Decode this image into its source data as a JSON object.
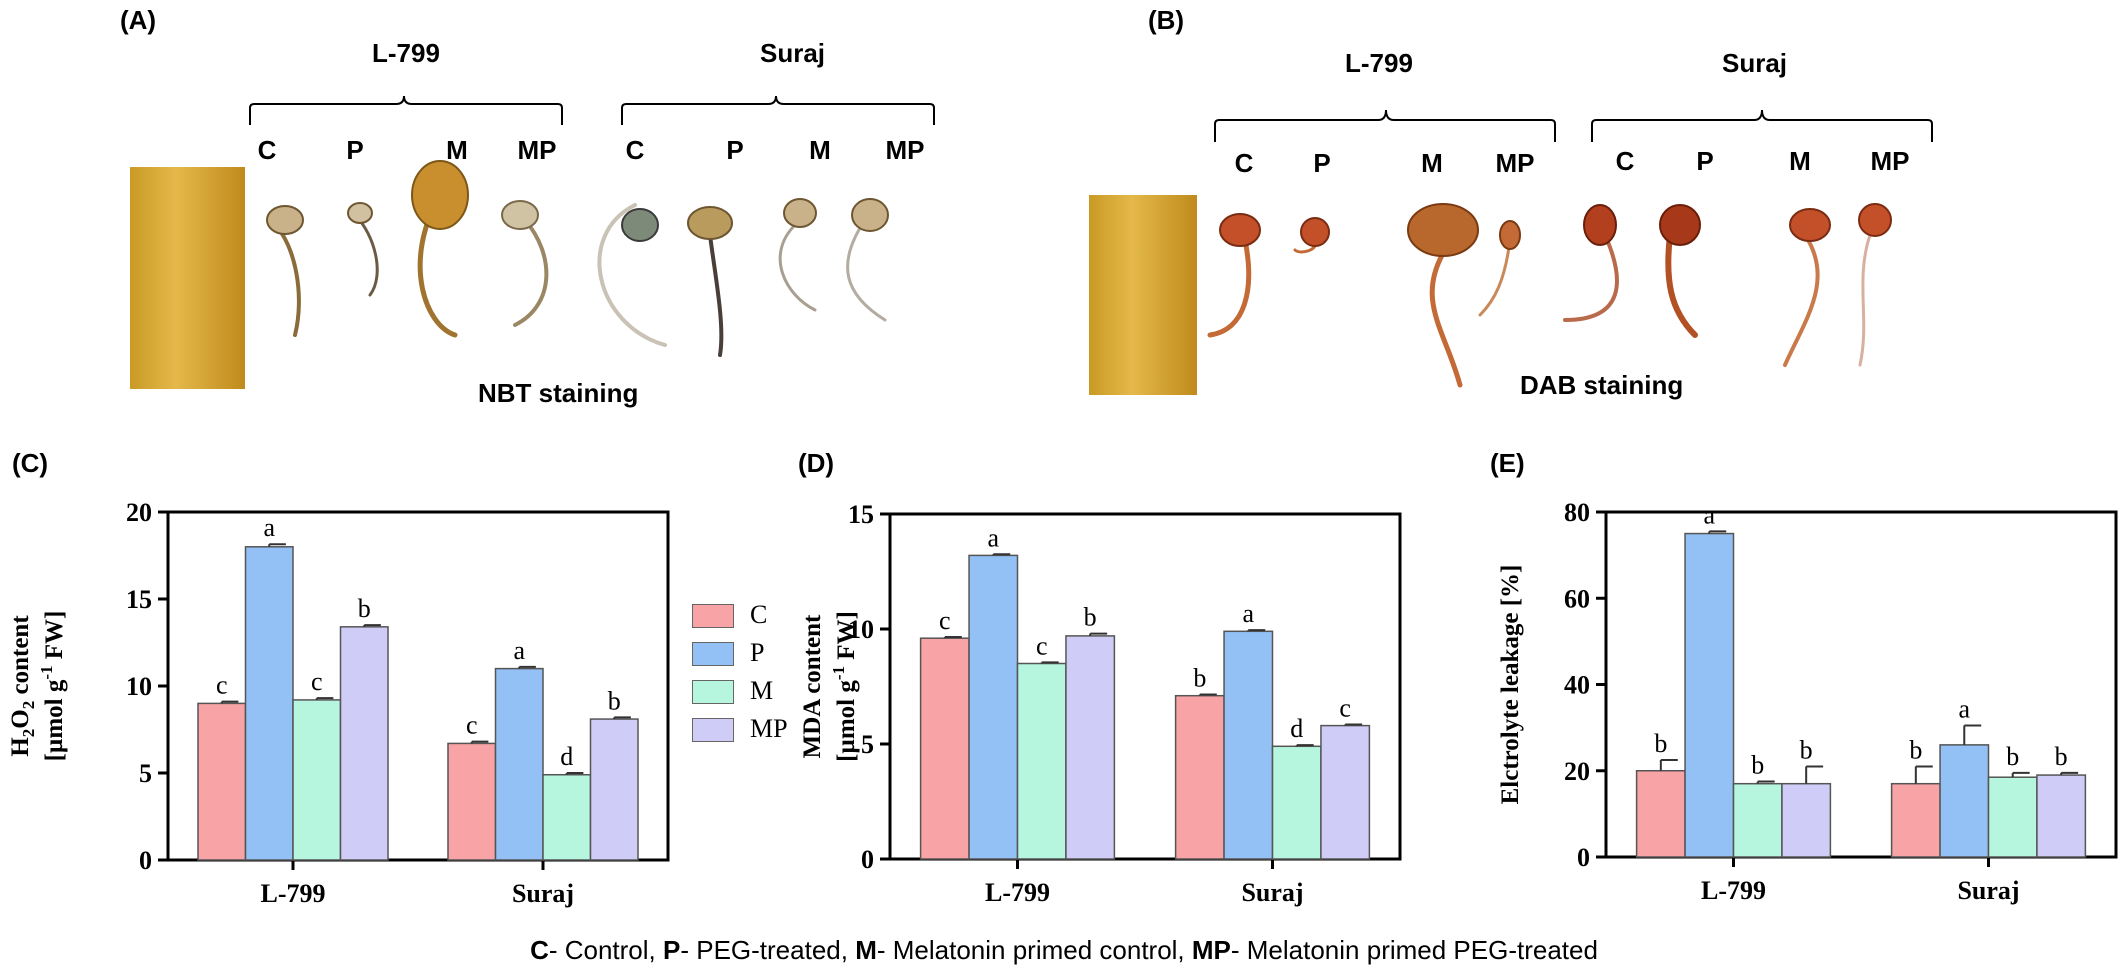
{
  "panels": {
    "a": {
      "label": "(A)",
      "groups": [
        {
          "name": "L-799",
          "treatments": [
            "C",
            "P",
            "M",
            "MP"
          ]
        },
        {
          "name": "Suraj",
          "treatments": [
            "C",
            "P",
            "M",
            "MP"
          ]
        }
      ],
      "stain": "NBT staining"
    },
    "b": {
      "label": "(B)",
      "groups": [
        {
          "name": "L-799",
          "treatments": [
            "C",
            "P",
            "M",
            "MP"
          ]
        },
        {
          "name": "Suraj",
          "treatments": [
            "C",
            "P",
            "M",
            "MP"
          ]
        }
      ],
      "stain": "DAB staining"
    },
    "c_label": "(C)",
    "d_label": "(D)",
    "e_label": "(E)"
  },
  "legend": [
    {
      "name": "C",
      "color": "#f8a3a6"
    },
    {
      "name": "P",
      "color": "#93c0f5"
    },
    {
      "name": "M",
      "color": "#b6f5de"
    },
    {
      "name": "MP",
      "color": "#cfcdf8"
    }
  ],
  "footer": [
    {
      "bold": "C",
      "text": "- Control, "
    },
    {
      "bold": "P",
      "text": "- PEG-treated, "
    },
    {
      "bold": "M",
      "text": "- Melatonin primed control, "
    },
    {
      "bold": "MP",
      "text": "- Melatonin primed PEG-treated"
    }
  ],
  "chart_data": [
    {
      "type": "bar",
      "categories": [
        "L-799",
        "Suraj"
      ],
      "ylabel_lines": [
        "H2O2 content",
        "[µmol g-1 FW]"
      ],
      "ylim": [
        0,
        20
      ],
      "yticks": [
        0,
        5,
        10,
        15,
        20
      ],
      "series": [
        {
          "name": "C",
          "values": [
            9.0,
            6.7
          ],
          "errors": [
            0.1,
            0.1
          ],
          "letters": [
            "c",
            "c"
          ]
        },
        {
          "name": "P",
          "values": [
            18.0,
            11.0
          ],
          "errors": [
            0.15,
            0.1
          ],
          "letters": [
            "a",
            "a"
          ]
        },
        {
          "name": "M",
          "values": [
            9.2,
            4.9
          ],
          "errors": [
            0.1,
            0.1
          ],
          "letters": [
            "c",
            "d"
          ]
        },
        {
          "name": "MP",
          "values": [
            13.4,
            8.1
          ],
          "errors": [
            0.1,
            0.1
          ],
          "letters": [
            "b",
            "b"
          ]
        }
      ]
    },
    {
      "type": "bar",
      "categories": [
        "L-799",
        "Suraj"
      ],
      "ylabel_lines": [
        "MDA content",
        "[µmol g-1 FW]"
      ],
      "ylim": [
        0,
        15
      ],
      "yticks": [
        0,
        5,
        10,
        15
      ],
      "series": [
        {
          "name": "C",
          "values": [
            9.6,
            7.1
          ],
          "errors": [
            0.05,
            0.05
          ],
          "letters": [
            "c",
            "b"
          ]
        },
        {
          "name": "P",
          "values": [
            13.2,
            9.9
          ],
          "errors": [
            0.05,
            0.05
          ],
          "letters": [
            "a",
            "a"
          ]
        },
        {
          "name": "M",
          "values": [
            8.5,
            4.9
          ],
          "errors": [
            0.05,
            0.05
          ],
          "letters": [
            "c",
            "d"
          ]
        },
        {
          "name": "MP",
          "values": [
            9.7,
            5.8
          ],
          "errors": [
            0.1,
            0.05
          ],
          "letters": [
            "b",
            "c"
          ]
        }
      ]
    },
    {
      "type": "bar",
      "categories": [
        "L-799",
        "Suraj"
      ],
      "ylabel_lines": [
        "Elctrolyte leakage [%]"
      ],
      "ylim": [
        0,
        80
      ],
      "yticks": [
        0,
        20,
        40,
        60,
        80
      ],
      "series": [
        {
          "name": "C",
          "values": [
            20,
            17
          ],
          "errors": [
            2.5,
            4
          ],
          "letters": [
            "b",
            "b"
          ]
        },
        {
          "name": "P",
          "values": [
            75,
            26
          ],
          "errors": [
            0.5,
            4.5
          ],
          "letters": [
            "a",
            "a"
          ]
        },
        {
          "name": "M",
          "values": [
            17,
            18.5
          ],
          "errors": [
            0.5,
            1
          ],
          "letters": [
            "b",
            "b"
          ]
        },
        {
          "name": "MP",
          "values": [
            17,
            19
          ],
          "errors": [
            4,
            0.5
          ],
          "letters": [
            "b",
            "b"
          ]
        }
      ]
    }
  ]
}
